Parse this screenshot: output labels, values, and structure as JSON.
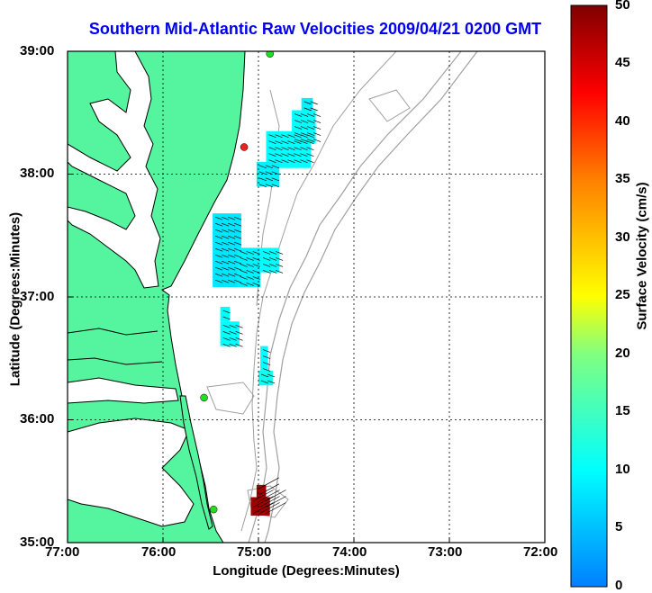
{
  "title": "Southern Mid-Atlantic Raw Velocities 2009/04/21 0200 GMT",
  "x_axis": {
    "label": "Longitude (Degrees:Minutes)",
    "ticks": [
      "77:00",
      "76:00",
      "75:00",
      "74:00",
      "73:00",
      "72:00"
    ]
  },
  "y_axis": {
    "label": "Latitude (Degrees:Minutes)",
    "ticks": [
      "39:00",
      "38:00",
      "37:00",
      "36:00",
      "35:00"
    ]
  },
  "colorbar": {
    "label": "Surface Velocity (cm/s)",
    "ticks": [
      "50",
      "45",
      "40",
      "35",
      "30",
      "25",
      "20",
      "15",
      "10",
      "5",
      "0"
    ],
    "range": [
      0,
      50
    ]
  },
  "colors": {
    "land": "#55f5a0",
    "water": "#ffffff",
    "coastline": "#000000",
    "bathymetry": "#a0a0a0",
    "title": "#0000ee",
    "grid": "#000000"
  },
  "map": {
    "lon_range": [
      -77,
      -72
    ],
    "lat_range": [
      35,
      39
    ],
    "grid": true,
    "stations": [
      {
        "lon": -74.88,
        "lat": 38.98,
        "color": "#22dd22"
      },
      {
        "lon": -75.15,
        "lat": 38.22,
        "color": "#ee2222"
      },
      {
        "lon": -75.57,
        "lat": 36.18,
        "color": "#22dd22"
      },
      {
        "lon": -75.47,
        "lat": 35.27,
        "color": "#22dd22"
      }
    ],
    "velocity_cells": [
      {
        "lon_min": -74.55,
        "lon_max": -74.43,
        "lat_min": 38.52,
        "lat_max": 38.62,
        "speed": 9
      },
      {
        "lon_min": -74.65,
        "lon_max": -74.4,
        "lat_min": 38.25,
        "lat_max": 38.52,
        "speed": 10
      },
      {
        "lon_min": -74.92,
        "lon_max": -74.45,
        "lat_min": 38.05,
        "lat_max": 38.35,
        "speed": 10
      },
      {
        "lon_min": -75.02,
        "lon_max": -74.78,
        "lat_min": 37.9,
        "lat_max": 38.1,
        "speed": 9
      },
      {
        "lon_min": -75.48,
        "lon_max": -75.18,
        "lat_min": 37.08,
        "lat_max": 37.68,
        "speed": 8
      },
      {
        "lon_min": -75.22,
        "lon_max": -74.98,
        "lat_min": 37.08,
        "lat_max": 37.4,
        "speed": 9
      },
      {
        "lon_min": -74.98,
        "lon_max": -74.78,
        "lat_min": 37.2,
        "lat_max": 37.4,
        "speed": 10
      },
      {
        "lon_min": -75.4,
        "lon_max": -75.3,
        "lat_min": 36.8,
        "lat_max": 36.92,
        "speed": 10
      },
      {
        "lon_min": -75.4,
        "lon_max": -75.2,
        "lat_min": 36.6,
        "lat_max": 36.8,
        "speed": 10
      },
      {
        "lon_min": -74.98,
        "lon_max": -74.9,
        "lat_min": 36.4,
        "lat_max": 36.6,
        "speed": 10
      },
      {
        "lon_min": -75.0,
        "lon_max": -74.85,
        "lat_min": 36.28,
        "lat_max": 36.4,
        "speed": 11
      },
      {
        "lon_min": -75.02,
        "lon_max": -74.92,
        "lat_min": 35.37,
        "lat_max": 35.47,
        "speed": 48
      },
      {
        "lon_min": -75.08,
        "lon_max": -74.88,
        "lat_min": 35.22,
        "lat_max": 35.37,
        "speed": 48
      }
    ]
  }
}
